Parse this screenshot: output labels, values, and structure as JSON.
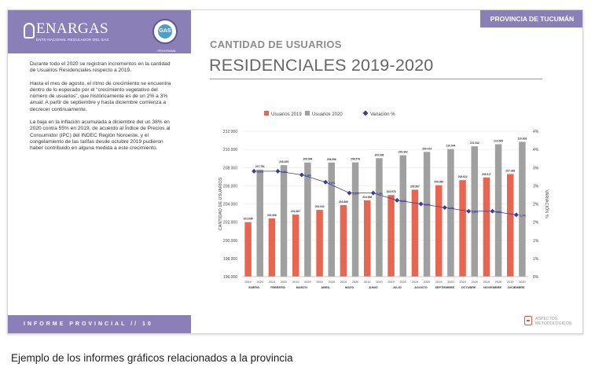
{
  "header": {
    "logo_text": "ENARGAS",
    "logo_subtext": "ENTE NACIONAL REGULADOR DEL GAS",
    "badge_text": "GAS",
    "badge_caption": "PROGRAMA",
    "province_tab": "PROVINCIA DE TUCUMÁN"
  },
  "sidebar": {
    "paragraphs": [
      "Durante todo el 2020 se registran incrementos en la cantidad de Usuarios Residenciales respecto a 2019.",
      "Hasta el mes de agosto, el ritmo de crecimiento se encuentra dentro de lo esperado por el “crecimiento vegetativo del número de usuarios”, que históricamente es de un 2% a 3% anual. A partir de septiembre y hasta diciembre comienza a decrecer continuamente.",
      "La baja en la inflación acumulada a diciembre del un 38% en 2020 contra 55% en 2019, de acuerdo al Índice de Precios al Consumidor (IPC) del INDEC Región Noroeste, y el congelamiento de las tarifas desde octubre 2019 pudieron haber contribuido en alguna medida a este crecimiento."
    ],
    "footer_label": "INFORME PROVINCIAL  //  10"
  },
  "main": {
    "subtitle": "CANTIDAD DE USUARIOS",
    "title": "RESIDENCIALES 2019-2020",
    "aspectos_label": "ASPECTOS METODOLÓGICOS"
  },
  "caption": "Ejemplo de los informes gráficos relacionados a la provincia",
  "colors": {
    "accent": "#8b7fb8",
    "bar_2019": "#e8664f",
    "bar_2020": "#a0a0a0",
    "line": "#3c3c9c"
  },
  "chart_data": {
    "type": "bar",
    "ylabel": "CANTIDAD DE USUARIOS",
    "y2label": "VARIACIÓN %",
    "ylim": [
      196000,
      212000
    ],
    "y_ticks": [
      "196.000",
      "198.000",
      "200.000",
      "202.000",
      "204.000",
      "206.000",
      "208.000",
      "210.000",
      "212.000"
    ],
    "y2lim": [
      0,
      4
    ],
    "y2_ticks": [
      "0%",
      "1%",
      "1%",
      "2%",
      "2%",
      "3%",
      "3%",
      "4%",
      "4%"
    ],
    "legend": [
      "Usuarios 2019",
      "Usuarios 2020",
      "Variación %"
    ],
    "legend_position": "top",
    "months": [
      "ENERO",
      "FEBRERO",
      "MARZO",
      "ABRIL",
      "MAYO",
      "JUNIO",
      "JULIO",
      "AGOSTO",
      "SEPTIEMBRE",
      "OCTUBRE",
      "NOVIEMBRE",
      "DICIEMBRE"
    ],
    "year_labels": [
      "2019",
      "2020"
    ],
    "series": [
      {
        "name": "Usuarios 2019",
        "values": [
          201996,
          202396,
          202827,
          203343,
          203869,
          204396,
          204976,
          205567,
          206060,
          206622,
          206917,
          207288
        ],
        "labels": [
          "201.996",
          "202.396",
          "202.827",
          "203.343",
          "203.869",
          "204.396",
          "204.976",
          "205.567",
          "206.060",
          "206.622",
          "206.917",
          "207.288"
        ]
      },
      {
        "name": "Usuarios 2020",
        "values": [
          207781,
          208265,
          208564,
          208556,
          208576,
          209036,
          209362,
          209724,
          210044,
          210342,
          210569,
          210833
        ],
        "labels": [
          "207.781",
          "208.265",
          "208.564",
          "208.556",
          "208.576",
          "209.036",
          "209.362",
          "209.724",
          "210.044",
          "210.342",
          "210.569",
          "210.833"
        ]
      },
      {
        "name": "Variación %",
        "values": [
          2.9,
          2.9,
          2.8,
          2.6,
          2.3,
          2.3,
          2.1,
          2.0,
          1.9,
          1.8,
          1.8,
          1.7
        ],
        "labels": [
          "2,9%",
          "2,9%",
          "2,8%",
          "2,6%",
          "2,3%",
          "2,3%",
          "2,1%",
          "2,0%",
          "1,9%",
          "1,8%",
          "1,8%",
          "1,7%"
        ]
      }
    ]
  }
}
